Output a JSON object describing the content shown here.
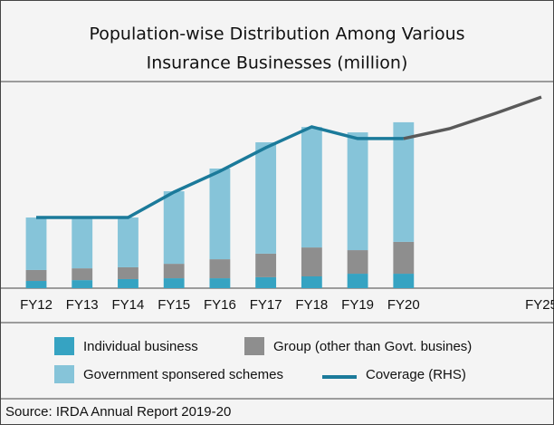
{
  "chart_data": {
    "type": "bar",
    "title": [
      "Population-wise Distribution Among Various",
      "Insurance Businesses (million)"
    ],
    "categories": [
      "FY12",
      "FY13",
      "FY14",
      "FY15",
      "FY16",
      "FY17",
      "FY18",
      "FY19",
      "FY20",
      null,
      null,
      "FY25"
    ],
    "stacked": true,
    "ylim": [
      0,
      100
    ],
    "y2lim": [
      0,
      100
    ],
    "series": [
      {
        "name": "Individual business",
        "color": "#36a3c2",
        "values": [
          3.5,
          3.9,
          4.4,
          4.8,
          4.8,
          5.3,
          5.7,
          7.0,
          7.0,
          null,
          null,
          null
        ]
      },
      {
        "name": "Group (other than Govt. busines)",
        "color": "#8e8e8e",
        "values": [
          5.3,
          5.7,
          5.7,
          7.0,
          9.2,
          11.4,
          14.0,
          11.4,
          15.4,
          null,
          null,
          null
        ]
      },
      {
        "name": "Government sponsered schemes",
        "color": "#86c4d9",
        "values": [
          25.4,
          24.6,
          24.1,
          35.1,
          43.9,
          53.9,
          58.3,
          57.0,
          57.9,
          null,
          null,
          null
        ]
      },
      {
        "name": "Coverage (RHS)",
        "type": "line",
        "axis": "y2",
        "color": "#1b7a9a",
        "values": [
          34.2,
          34.2,
          34.2,
          46.5,
          56.6,
          68.0,
          78.1,
          72.4,
          72.4,
          null,
          null,
          null
        ]
      },
      {
        "type": "line",
        "axis": "y2",
        "color": "#595959",
        "values": [
          null,
          null,
          null,
          null,
          null,
          null,
          null,
          null,
          72.4,
          77.2,
          84.6,
          92.5
        ]
      }
    ],
    "source": "Source: IRDA Annual Report 2019-20"
  }
}
